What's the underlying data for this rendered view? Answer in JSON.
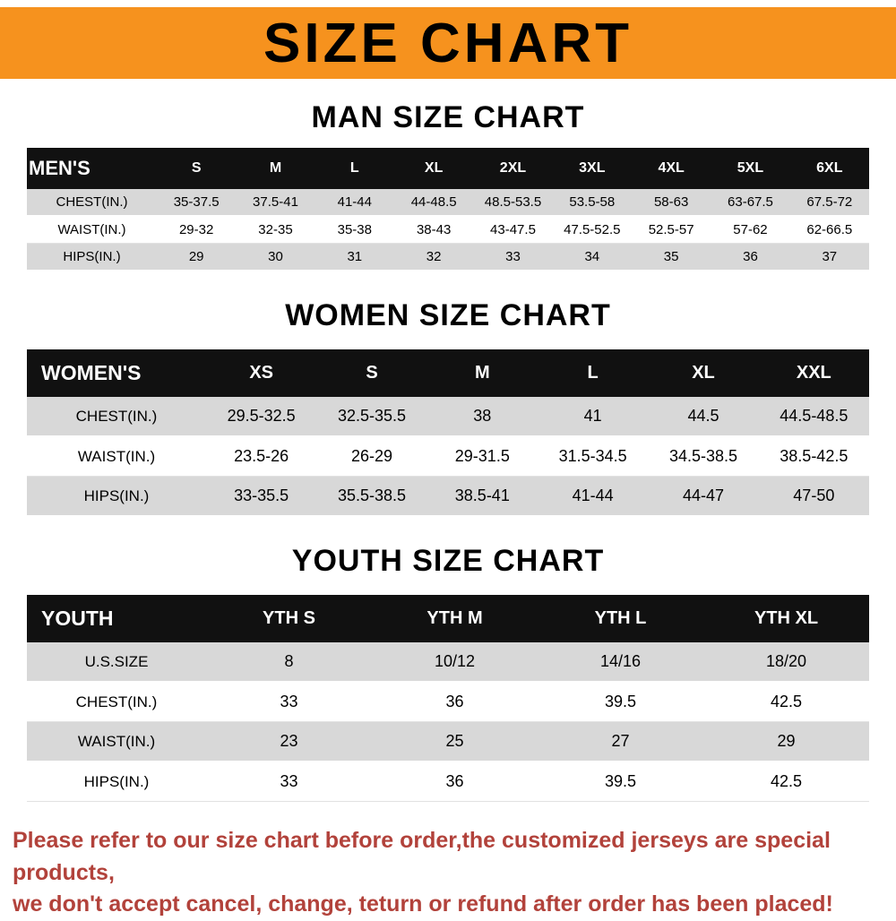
{
  "banner": {
    "title": "SIZE CHART"
  },
  "colors": {
    "banner-bg": "#f6921e",
    "table-header-bg": "#111111",
    "row-shade": "#d8d8d8",
    "disclaimer-color": "#b2423b"
  },
  "chart_data": [
    {
      "type": "table",
      "id": "men",
      "title": "MAN SIZE CHART",
      "header_label": "MEN'S",
      "columns": [
        "S",
        "M",
        "L",
        "XL",
        "2XL",
        "3XL",
        "4XL",
        "5XL",
        "6XL"
      ],
      "rows": [
        {
          "label": "CHEST(IN.)",
          "values": [
            "35-37.5",
            "37.5-41",
            "41-44",
            "44-48.5",
            "48.5-53.5",
            "53.5-58",
            "58-63",
            "63-67.5",
            "67.5-72"
          ]
        },
        {
          "label": "WAIST(IN.)",
          "values": [
            "29-32",
            "32-35",
            "35-38",
            "38-43",
            "43-47.5",
            "47.5-52.5",
            "52.5-57",
            "57-62",
            "62-66.5"
          ]
        },
        {
          "label": "HIPS(IN.)",
          "values": [
            "29",
            "30",
            "31",
            "32",
            "33",
            "34",
            "35",
            "36",
            "37"
          ]
        }
      ]
    },
    {
      "type": "table",
      "id": "women",
      "title": "WOMEN SIZE CHART",
      "header_label": "WOMEN'S",
      "columns": [
        "XS",
        "S",
        "M",
        "L",
        "XL",
        "XXL"
      ],
      "rows": [
        {
          "label": "CHEST(IN.)",
          "values": [
            "29.5-32.5",
            "32.5-35.5",
            "38",
            "41",
            "44.5",
            "44.5-48.5"
          ]
        },
        {
          "label": "WAIST(IN.)",
          "values": [
            "23.5-26",
            "26-29",
            "29-31.5",
            "31.5-34.5",
            "34.5-38.5",
            "38.5-42.5"
          ]
        },
        {
          "label": "HIPS(IN.)",
          "values": [
            "33-35.5",
            "35.5-38.5",
            "38.5-41",
            "41-44",
            "44-47",
            "47-50"
          ]
        }
      ]
    },
    {
      "type": "table",
      "id": "youth",
      "title": "YOUTH SIZE CHART",
      "header_label": "YOUTH",
      "columns": [
        "YTH S",
        "YTH M",
        "YTH L",
        "YTH XL"
      ],
      "rows": [
        {
          "label": "U.S.SIZE",
          "values": [
            "8",
            "10/12",
            "14/16",
            "18/20"
          ]
        },
        {
          "label": "CHEST(IN.)",
          "values": [
            "33",
            "36",
            "39.5",
            "42.5"
          ]
        },
        {
          "label": "WAIST(IN.)",
          "values": [
            "23",
            "25",
            "27",
            "29"
          ]
        },
        {
          "label": "HIPS(IN.)",
          "values": [
            "33",
            "36",
            "39.5",
            "42.5"
          ]
        }
      ]
    }
  ],
  "disclaimer": {
    "line1": "Please refer to our size chart before order,the customized jerseys are special products,",
    "line2": "we don't accept cancel, change, teturn or refund after order has been placed!"
  }
}
